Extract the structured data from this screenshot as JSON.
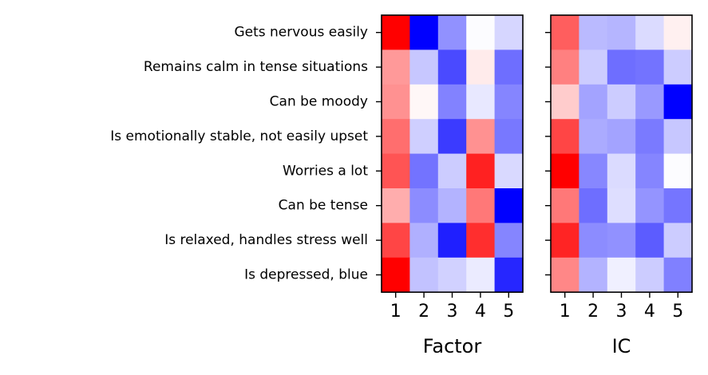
{
  "chart_data": {
    "type": "heatmap",
    "row_labels": [
      "Gets nervous easily",
      "Remains calm in tense situations",
      "Can be moody",
      "Is emotionally stable, not easily upset",
      "Worries a lot",
      "Can be tense",
      "Is relaxed, handles stress well",
      "Is depressed, blue"
    ],
    "colormap": "bwr",
    "vmin": -1,
    "vmax": 1,
    "colors": {
      "negative": "#0000ff",
      "neutral": "#ffffff",
      "positive": "#ff0000"
    },
    "panels": [
      {
        "xlabel": "Factor",
        "x_ticks": [
          "1",
          "2",
          "3",
          "4",
          "5"
        ],
        "values": [
          [
            1.0,
            -1.0,
            -0.43,
            -0.01,
            -0.16
          ],
          [
            0.4,
            -0.22,
            -0.71,
            0.08,
            -0.57
          ],
          [
            0.43,
            0.03,
            -0.49,
            -0.09,
            -0.48
          ],
          [
            0.57,
            -0.19,
            -0.77,
            0.43,
            -0.53
          ],
          [
            0.67,
            -0.55,
            -0.2,
            0.87,
            -0.15
          ],
          [
            0.32,
            -0.45,
            -0.3,
            0.53,
            -1.0
          ],
          [
            0.73,
            -0.31,
            -0.88,
            0.82,
            -0.48
          ],
          [
            1.0,
            -0.24,
            -0.18,
            -0.08,
            -0.85
          ]
        ]
      },
      {
        "xlabel": "IC",
        "x_ticks": [
          "1",
          "2",
          "3",
          "4",
          "5"
        ],
        "values": [
          [
            0.63,
            -0.27,
            -0.29,
            -0.14,
            0.06
          ],
          [
            0.5,
            -0.2,
            -0.57,
            -0.55,
            -0.2
          ],
          [
            0.2,
            -0.36,
            -0.2,
            -0.4,
            -1.0
          ],
          [
            0.73,
            -0.33,
            -0.36,
            -0.52,
            -0.22
          ],
          [
            1.0,
            -0.47,
            -0.14,
            -0.48,
            -0.01
          ],
          [
            0.53,
            -0.57,
            -0.13,
            -0.42,
            -0.54
          ],
          [
            0.86,
            -0.45,
            -0.43,
            -0.64,
            -0.2
          ],
          [
            0.47,
            -0.3,
            -0.06,
            -0.2,
            -0.5
          ]
        ]
      }
    ]
  }
}
